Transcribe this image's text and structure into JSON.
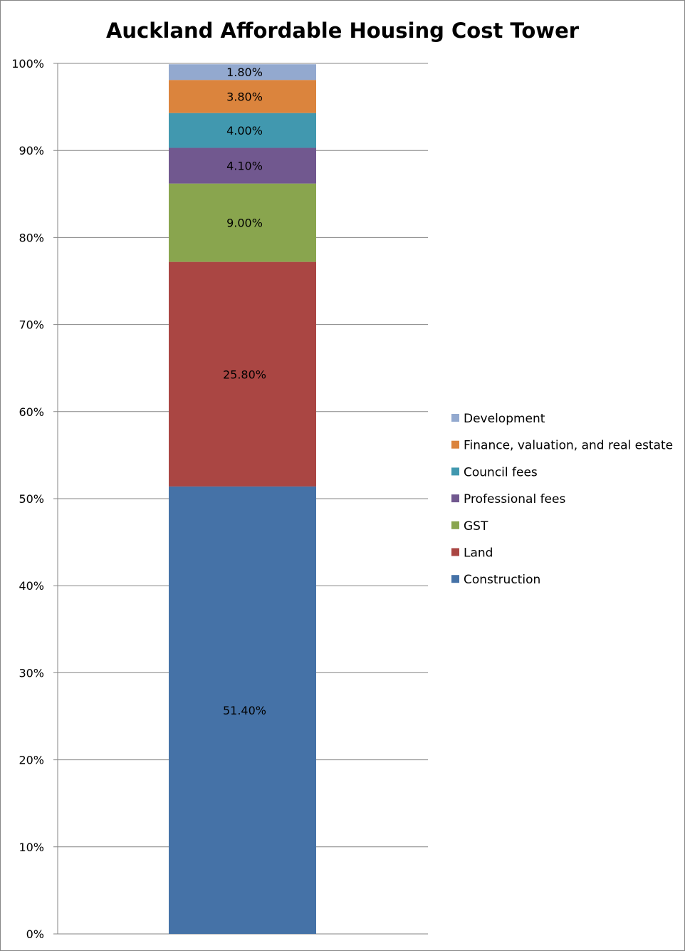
{
  "chart_data": {
    "type": "bar",
    "stacked": "percent",
    "title": "Auckland Affordable Housing Cost Tower",
    "xlabel": "",
    "ylabel": "",
    "ylim": [
      0,
      100
    ],
    "y_ticks": [
      "0%",
      "10%",
      "20%",
      "30%",
      "40%",
      "50%",
      "60%",
      "70%",
      "80%",
      "90%",
      "100%"
    ],
    "grid": true,
    "legend_position": "right",
    "categories": [
      ""
    ],
    "series": [
      {
        "name": "Construction",
        "values": [
          51.4
        ],
        "label": "51.40%",
        "color": "#4572A7"
      },
      {
        "name": "Land",
        "values": [
          25.8
        ],
        "label": "25.80%",
        "color": "#AA4643"
      },
      {
        "name": "GST",
        "values": [
          9.0
        ],
        "label": "9.00%",
        "color": "#89A54E"
      },
      {
        "name": "Professional fees",
        "values": [
          4.1
        ],
        "label": "4.10%",
        "color": "#71588F"
      },
      {
        "name": "Council fees",
        "values": [
          4.0
        ],
        "label": "4.00%",
        "color": "#4198AF"
      },
      {
        "name": "Finance, valuation, and real estate",
        "values": [
          3.8
        ],
        "label": "3.80%",
        "color": "#DB843D"
      },
      {
        "name": "Development",
        "values": [
          1.8
        ],
        "label": "1.80%",
        "color": "#93A9CF"
      }
    ]
  }
}
